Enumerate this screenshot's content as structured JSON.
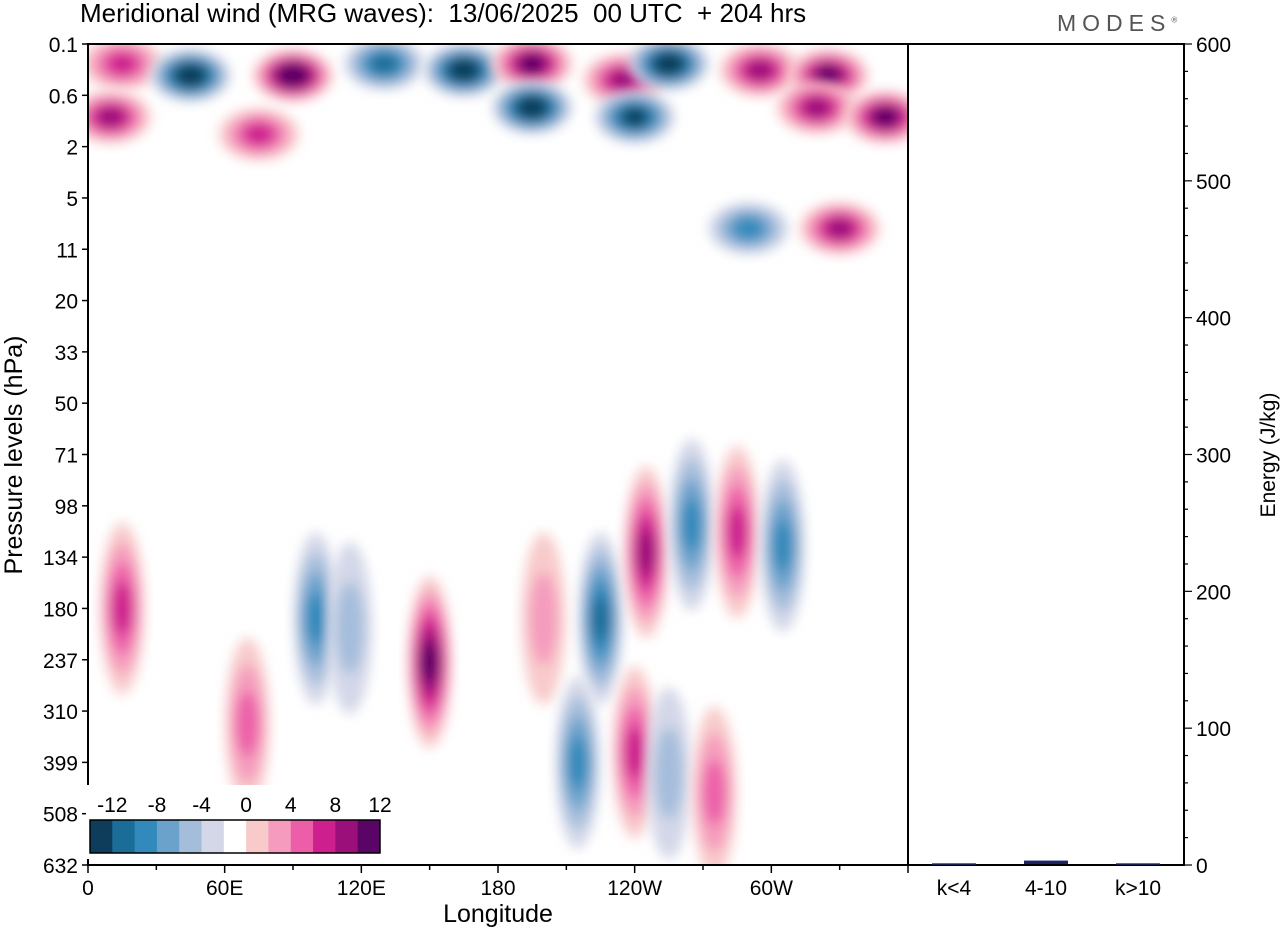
{
  "header": {
    "title": "Meridional wind (MRG waves):  13/06/2025  00 UTC  + 204 hrs",
    "brand": "MODES"
  },
  "colors": {
    "levels_neg": [
      "#0d3d5a",
      "#1a6d97",
      "#3289bb",
      "#6ba2cc",
      "#a4bddb",
      "#d3d7e8"
    ],
    "levels_pos": [
      "#f8caca",
      "#f59bbd",
      "#ec5ea8",
      "#cd1f8e",
      "#9b0f7a",
      "#5a0566"
    ],
    "energy_bar": "#1a2466"
  },
  "chart_data": [
    {
      "type": "heatmap",
      "title": "Meridional wind (MRG waves):  13/06/2025  00 UTC  + 204 hrs",
      "xlabel": "Longitude",
      "ylabel": "Pressure levels (hPa)",
      "x_ticks": [
        "0",
        "60E",
        "120E",
        "180",
        "120W",
        "60W"
      ],
      "y_ticks": [
        "0.1",
        "0.6",
        "2",
        "5",
        "11",
        "20",
        "33",
        "50",
        "71",
        "98",
        "134",
        "180",
        "237",
        "310",
        "399",
        "508",
        "632"
      ],
      "colorbar": {
        "labels": [
          "-12",
          "-8",
          "-4",
          "0",
          "4",
          "8",
          "12"
        ],
        "levels": [
          -14,
          -12,
          -10,
          -8,
          -6,
          -4,
          -2,
          2,
          4,
          6,
          8,
          10,
          12,
          14
        ]
      },
      "features": [
        {
          "lon": 15,
          "p": 0.2,
          "v": 8
        },
        {
          "lon": 45,
          "p": 0.3,
          "v": -14
        },
        {
          "lon": 90,
          "p": 0.3,
          "v": 14
        },
        {
          "lon": 130,
          "p": 0.2,
          "v": -10
        },
        {
          "lon": 165,
          "p": 0.25,
          "v": -14
        },
        {
          "lon": 195,
          "p": 0.2,
          "v": 12
        },
        {
          "lon": 235,
          "p": 0.35,
          "v": 10
        },
        {
          "lon": 255,
          "p": 0.2,
          "v": -14
        },
        {
          "lon": 295,
          "p": 0.25,
          "v": 10
        },
        {
          "lon": 325,
          "p": 0.3,
          "v": 12
        },
        {
          "lon": 195,
          "p": 0.8,
          "v": -14
        },
        {
          "lon": 240,
          "p": 1.0,
          "v": -12
        },
        {
          "lon": 10,
          "p": 1.0,
          "v": 10
        },
        {
          "lon": 75,
          "p": 1.5,
          "v": 8
        },
        {
          "lon": 320,
          "p": 0.8,
          "v": 10
        },
        {
          "lon": 350,
          "p": 1.0,
          "v": 12
        },
        {
          "lon": 290,
          "p": 8,
          "v": -8
        },
        {
          "lon": 330,
          "p": 8,
          "v": 10
        },
        {
          "lon": 15,
          "p": 180,
          "v": 8
        },
        {
          "lon": 100,
          "p": 190,
          "v": -8
        },
        {
          "lon": 115,
          "p": 200,
          "v": -4
        },
        {
          "lon": 150,
          "p": 240,
          "v": 12
        },
        {
          "lon": 70,
          "p": 330,
          "v": 6
        },
        {
          "lon": 225,
          "p": 190,
          "v": -10
        },
        {
          "lon": 200,
          "p": 190,
          "v": 4
        },
        {
          "lon": 245,
          "p": 130,
          "v": 10
        },
        {
          "lon": 265,
          "p": 110,
          "v": -8
        },
        {
          "lon": 285,
          "p": 115,
          "v": 8
        },
        {
          "lon": 305,
          "p": 125,
          "v": -8
        },
        {
          "lon": 240,
          "p": 380,
          "v": 8
        },
        {
          "lon": 255,
          "p": 420,
          "v": -4
        },
        {
          "lon": 215,
          "p": 400,
          "v": -8
        },
        {
          "lon": 275,
          "p": 460,
          "v": 6
        }
      ]
    },
    {
      "type": "bar",
      "categories": [
        "k<4",
        "4-10",
        "k>10"
      ],
      "values": [
        0.5,
        2.5,
        0.5
      ],
      "ylabel": "Energy (J/kg)",
      "ylim": [
        0,
        600
      ],
      "y_ticks": [
        "0",
        "100",
        "200",
        "300",
        "400",
        "500",
        "600"
      ]
    }
  ]
}
